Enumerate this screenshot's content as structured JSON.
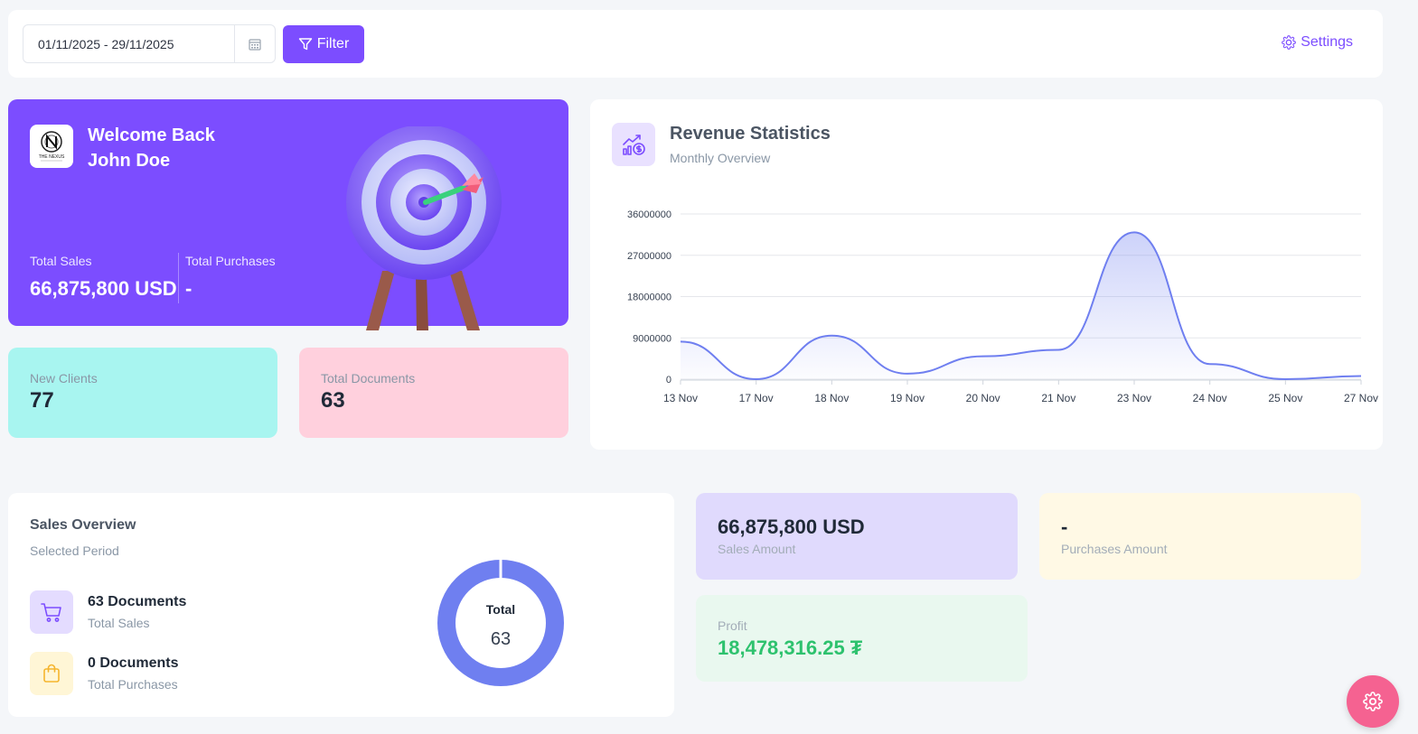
{
  "toolbar": {
    "date_range": "01/11/2025 - 29/11/2025",
    "filter_label": "Filter",
    "settings_label": "Settings"
  },
  "welcome": {
    "line1": "Welcome Back",
    "line2": "John Doe",
    "logo_text": "THE NEXUS",
    "total_sales_label": "Total Sales",
    "total_sales_value": "66,875,800 USD",
    "total_purchases_label": "Total Purchases",
    "total_purchases_value": "-"
  },
  "cards": {
    "new_clients_label": "New Clients",
    "new_clients_value": "77",
    "total_documents_label": "Total Documents",
    "total_documents_value": "63"
  },
  "revenue": {
    "title": "Revenue Statistics",
    "subtitle": "Monthly Overview"
  },
  "chart_data": {
    "type": "area",
    "title": "Revenue Statistics",
    "subtitle": "Monthly Overview",
    "categories": [
      "13 Nov",
      "17 Nov",
      "18 Nov",
      "19 Nov",
      "20 Nov",
      "21 Nov",
      "23 Nov",
      "24 Nov",
      "25 Nov",
      "27 Nov"
    ],
    "series": [
      {
        "values": [
          8200000,
          0,
          9500000,
          1200000,
          5000000,
          6400000,
          32000000,
          3300000,
          0,
          700000
        ]
      }
    ],
    "y_ticks": [
      "0",
      "9000000",
      "18000000",
      "27000000",
      "36000000"
    ],
    "ylim": [
      0,
      36000000
    ],
    "grid": true,
    "line_color": "#6f7ff0"
  },
  "sales_overview": {
    "title": "Sales Overview",
    "subtitle": "Selected Period",
    "sales_docs": "63 Documents",
    "sales_docs_label": "Total Sales",
    "purchase_docs": "0 Documents",
    "purchase_docs_label": "Total Purchases",
    "donut_label": "Total",
    "donut_value": "63",
    "donut_color": "#6f7ff0"
  },
  "amounts": {
    "sales_amount_value": "66,875,800 USD",
    "sales_amount_label": "Sales Amount",
    "purchases_amount_value": "-",
    "purchases_amount_label": "Purchases Amount",
    "profit_label": "Profit",
    "profit_value": "18,478,316.25 ₮"
  },
  "colors": {
    "accent": "#7c4dff",
    "clients_bg": "#a8f5f0",
    "documents_bg": "#ffd0dd",
    "sales_amount_bg": "#e0dafd",
    "purchases_amount_bg": "#fff9e5",
    "profit_bg": "#e9f8ef",
    "profit_text": "#2ec26e",
    "fab": "#f56291"
  }
}
